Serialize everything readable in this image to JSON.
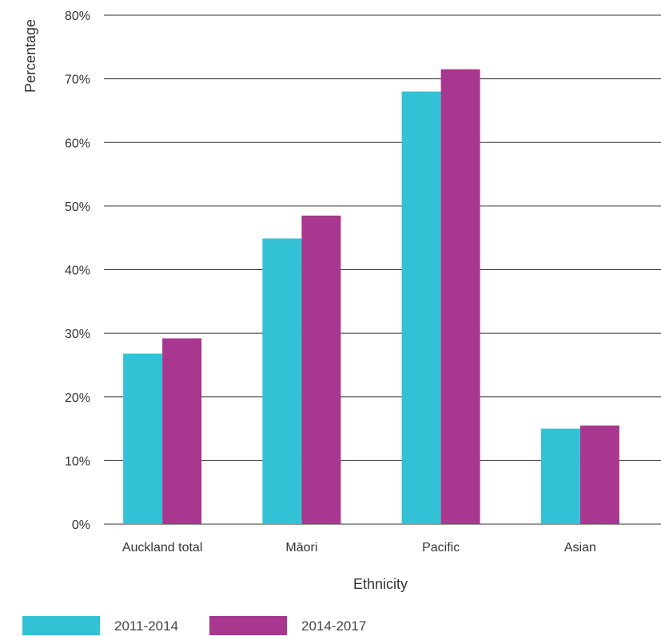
{
  "chart_data": {
    "type": "bar",
    "title": "",
    "xlabel": "Ethnicity",
    "ylabel": "Percentage",
    "categories": [
      "Auckland total",
      "Māori",
      "Pacific",
      "Asian"
    ],
    "series": [
      {
        "name": "2011-2014",
        "color": "#33C1D6",
        "values": [
          26.8,
          44.9,
          68.0,
          15.0
        ]
      },
      {
        "name": "2014-2017",
        "color": "#A8378F",
        "values": [
          29.2,
          48.5,
          71.5,
          15.5
        ]
      }
    ],
    "ylim": [
      0,
      80
    ],
    "yticks": [
      0,
      10,
      20,
      30,
      40,
      50,
      60,
      70,
      80
    ],
    "ytick_labels": [
      "0%",
      "10%",
      "20%",
      "30%",
      "40%",
      "50%",
      "60%",
      "70%",
      "80%"
    ],
    "grid": true,
    "legend": "bottom-left"
  }
}
